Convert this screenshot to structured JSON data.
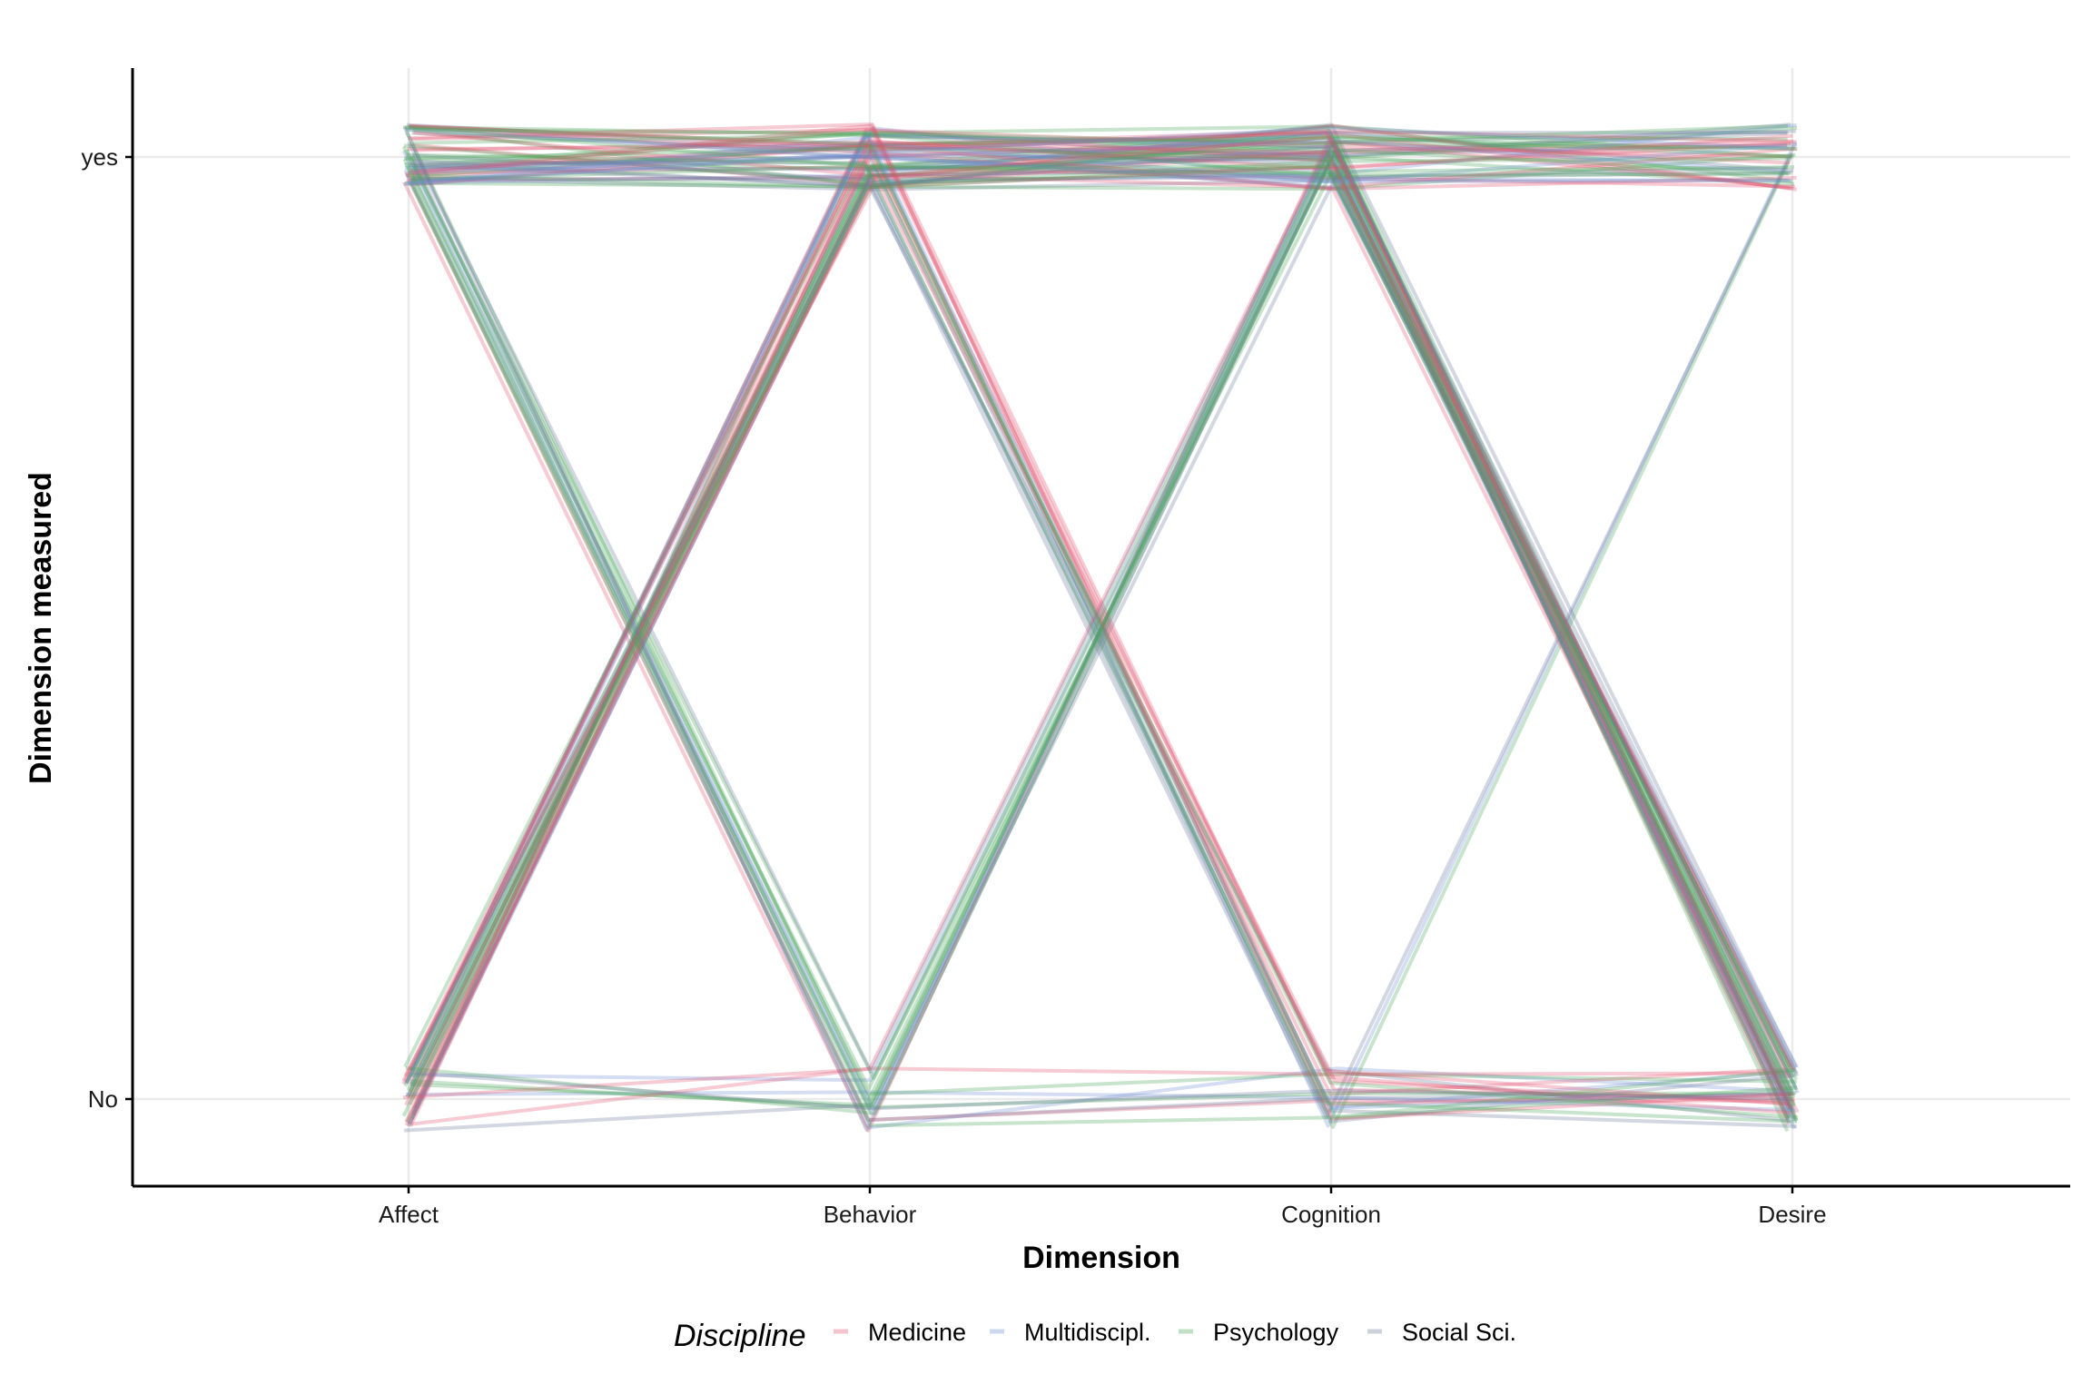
{
  "chart_data": {
    "type": "line",
    "subtype": "parallel-coordinates",
    "title": "",
    "xlabel": "Dimension",
    "ylabel": "Dimension measured",
    "categories": [
      "Affect",
      "Behavior",
      "Cognition",
      "Desire"
    ],
    "y_levels": [
      "No",
      "yes"
    ],
    "grid": true,
    "legend": {
      "title": "Discipline",
      "position": "bottom",
      "entries": [
        "Medicine",
        "Multidiscipl.",
        "Psychology",
        "Social Sci."
      ]
    },
    "colors": {
      "Medicine": "#e0526e",
      "Multidiscipl.": "#6f8fd0",
      "Psychology": "#4aa65a",
      "Social Sci.": "#6e7c9c"
    },
    "series": [
      {
        "name": "Medicine",
        "patterns": [
          {
            "values": [
              "yes",
              "yes",
              "yes",
              "yes"
            ],
            "count": 8
          },
          {
            "values": [
              "yes",
              "yes",
              "yes",
              "No"
            ],
            "count": 4
          },
          {
            "values": [
              "No",
              "yes",
              "yes",
              "yes"
            ],
            "count": 4
          },
          {
            "values": [
              "No",
              "yes",
              "yes",
              "No"
            ],
            "count": 4
          },
          {
            "values": [
              "yes",
              "yes",
              "No",
              "No"
            ],
            "count": 4
          },
          {
            "values": [
              "No",
              "yes",
              "No",
              "No"
            ],
            "count": 3
          },
          {
            "values": [
              "yes",
              "No",
              "yes",
              "yes"
            ],
            "count": 1
          },
          {
            "values": [
              "No",
              "No",
              "yes",
              "No"
            ],
            "count": 1
          },
          {
            "values": [
              "yes",
              "No",
              "No",
              "No"
            ],
            "count": 1
          },
          {
            "values": [
              "No",
              "No",
              "No",
              "No"
            ],
            "count": 1
          }
        ]
      },
      {
        "name": "Multidiscipl.",
        "patterns": [
          {
            "values": [
              "yes",
              "yes",
              "yes",
              "yes"
            ],
            "count": 4
          },
          {
            "values": [
              "yes",
              "yes",
              "yes",
              "No"
            ],
            "count": 2
          },
          {
            "values": [
              "No",
              "yes",
              "yes",
              "yes"
            ],
            "count": 2
          },
          {
            "values": [
              "No",
              "yes",
              "yes",
              "No"
            ],
            "count": 2
          },
          {
            "values": [
              "yes",
              "yes",
              "No",
              "No"
            ],
            "count": 2
          },
          {
            "values": [
              "No",
              "yes",
              "No",
              "yes"
            ],
            "count": 1
          },
          {
            "values": [
              "yes",
              "No",
              "yes",
              "No"
            ],
            "count": 2
          },
          {
            "values": [
              "No",
              "No",
              "yes",
              "No"
            ],
            "count": 1
          },
          {
            "values": [
              "yes",
              "No",
              "No",
              "No"
            ],
            "count": 1
          },
          {
            "values": [
              "No",
              "No",
              "No",
              "No"
            ],
            "count": 1
          }
        ]
      },
      {
        "name": "Psychology",
        "patterns": [
          {
            "values": [
              "yes",
              "yes",
              "yes",
              "yes"
            ],
            "count": 8
          },
          {
            "values": [
              "yes",
              "yes",
              "yes",
              "No"
            ],
            "count": 5
          },
          {
            "values": [
              "No",
              "yes",
              "yes",
              "yes"
            ],
            "count": 4
          },
          {
            "values": [
              "No",
              "yes",
              "yes",
              "No"
            ],
            "count": 5
          },
          {
            "values": [
              "yes",
              "yes",
              "No",
              "No"
            ],
            "count": 3
          },
          {
            "values": [
              "No",
              "yes",
              "No",
              "yes"
            ],
            "count": 1
          },
          {
            "values": [
              "yes",
              "No",
              "yes",
              "yes"
            ],
            "count": 2
          },
          {
            "values": [
              "yes",
              "No",
              "yes",
              "No"
            ],
            "count": 3
          },
          {
            "values": [
              "No",
              "No",
              "yes",
              "No"
            ],
            "count": 2
          },
          {
            "values": [
              "yes",
              "No",
              "No",
              "No"
            ],
            "count": 2
          },
          {
            "values": [
              "No",
              "No",
              "No",
              "No"
            ],
            "count": 1
          }
        ]
      },
      {
        "name": "Social Sci.",
        "patterns": [
          {
            "values": [
              "yes",
              "yes",
              "yes",
              "yes"
            ],
            "count": 5
          },
          {
            "values": [
              "yes",
              "yes",
              "yes",
              "No"
            ],
            "count": 4
          },
          {
            "values": [
              "No",
              "yes",
              "yes",
              "yes"
            ],
            "count": 3
          },
          {
            "values": [
              "No",
              "yes",
              "yes",
              "No"
            ],
            "count": 3
          },
          {
            "values": [
              "yes",
              "yes",
              "No",
              "No"
            ],
            "count": 3
          },
          {
            "values": [
              "No",
              "yes",
              "No",
              "yes"
            ],
            "count": 1
          },
          {
            "values": [
              "yes",
              "No",
              "yes",
              "No"
            ],
            "count": 2
          },
          {
            "values": [
              "No",
              "No",
              "yes",
              "No"
            ],
            "count": 1
          },
          {
            "values": [
              "yes",
              "No",
              "No",
              "No"
            ],
            "count": 1
          },
          {
            "values": [
              "No",
              "No",
              "No",
              "No"
            ],
            "count": 1
          }
        ]
      }
    ]
  }
}
